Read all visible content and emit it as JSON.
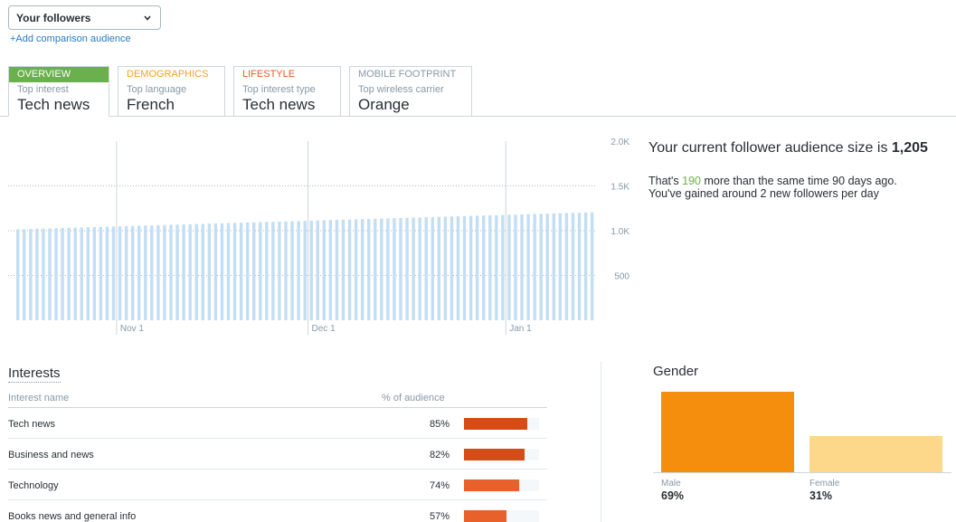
{
  "audience": {
    "selected": "Your followers",
    "add_comparison": "+Add comparison audience"
  },
  "tabs": [
    {
      "title": "OVERVIEW",
      "sub": "Top interest",
      "value": "Tech news",
      "color": "#6ab04c",
      "active": true
    },
    {
      "title": "DEMOGRAPHICS",
      "sub": "Top language",
      "value": "French",
      "color": "#f4a31f",
      "active": false
    },
    {
      "title": "LIFESTYLE",
      "sub": "Top interest type",
      "value": "Tech news",
      "color": "#e6592d",
      "active": false
    },
    {
      "title": "MOBILE FOOTPRINT",
      "sub": "Top wireless carrier",
      "value": "Orange",
      "color": "#8899a6",
      "active": false
    }
  ],
  "chart_data": {
    "type": "bar",
    "title": "",
    "xlabel": "",
    "ylabel": "",
    "ylim": [
      0,
      2000
    ],
    "ytick_values": [
      500,
      1000,
      1500,
      2000
    ],
    "yticks": [
      "500",
      "1.0K",
      "1.5K",
      "2.0K"
    ],
    "xticks": [
      {
        "label": "Nov 1",
        "index": 16
      },
      {
        "label": "Dec 1",
        "index": 46
      },
      {
        "label": "Jan 1",
        "index": 77
      }
    ],
    "grid": true,
    "color": "#c3def3",
    "start": 1015,
    "end": 1205,
    "count": 91
  },
  "summary": {
    "headline_prefix": "Your current follower audience size is ",
    "audience_size": "1,205",
    "line1_prefix": "That's ",
    "gain": "190",
    "line1_suffix": " more than the same time 90 days ago.",
    "line2": "You've gained around 2 new followers per day"
  },
  "interests": {
    "title": "Interests",
    "col_name": "Interest name",
    "col_pct": "% of audience",
    "rows": [
      {
        "name": "Tech news",
        "pct": "85%",
        "value": 85,
        "color": "#d44c17"
      },
      {
        "name": "Business and news",
        "pct": "82%",
        "value": 82,
        "color": "#d44c17"
      },
      {
        "name": "Technology",
        "pct": "74%",
        "value": 74,
        "color": "#e8602a"
      },
      {
        "name": "Books news and general info",
        "pct": "57%",
        "value": 57,
        "color": "#e8602a"
      }
    ]
  },
  "gender": {
    "title": "Gender",
    "items": [
      {
        "label": "Male",
        "pct": "69%",
        "value": 69,
        "color": "#f48e0c"
      },
      {
        "label": "Female",
        "pct": "31%",
        "value": 31,
        "color": "#fdd88a"
      }
    ]
  }
}
